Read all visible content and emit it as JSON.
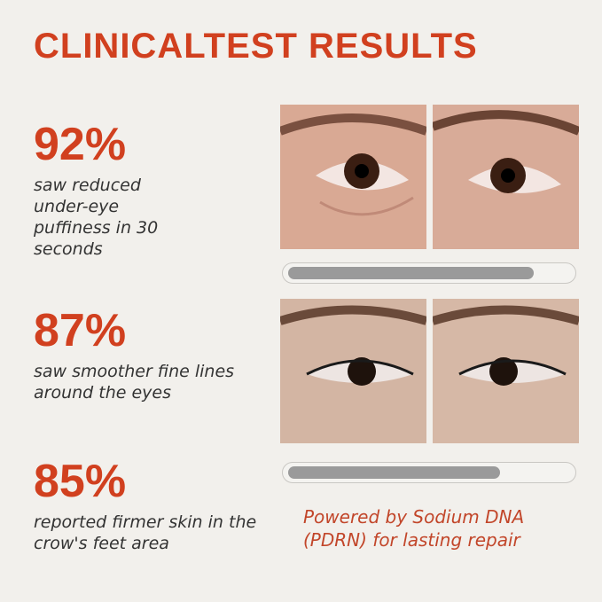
{
  "title": "CLINICALTEST RESULTS",
  "stats": [
    {
      "percent": "92%",
      "text": "saw reduced under-eye puffiness in 30 seconds"
    },
    {
      "percent": "87%",
      "text": "saw smoother fine lines around the eyes"
    },
    {
      "percent": "85%",
      "text": "reported firmer skin in the crow's feet area"
    }
  ],
  "comparisons": [
    {
      "before_label": "before-photo",
      "after_label": "after-photo",
      "progress": 0.87
    },
    {
      "before_label": "before-photo",
      "after_label": "after-photo",
      "progress": 0.75
    }
  ],
  "footer": "Powered by Sodium DNA (PDRN) for lasting repair",
  "colors": {
    "accent": "#d1401f",
    "background": "#f2f0ec",
    "bar_fill": "#9a9a9a"
  }
}
